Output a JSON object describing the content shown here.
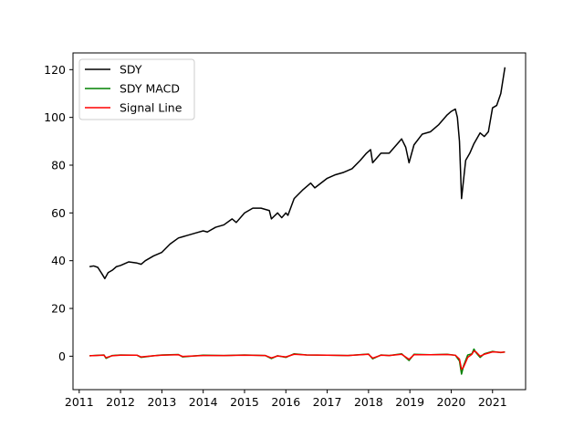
{
  "chart_data": {
    "type": "line",
    "title": "",
    "xlabel": "",
    "ylabel": "",
    "xlim": [
      2010.85,
      2021.8
    ],
    "ylim": [
      -14,
      127
    ],
    "xticks": [
      2011,
      2012,
      2013,
      2014,
      2015,
      2016,
      2017,
      2018,
      2019,
      2020,
      2021
    ],
    "xtick_labels": [
      "2011",
      "2012",
      "2013",
      "2014",
      "2015",
      "2016",
      "2017",
      "2018",
      "2019",
      "2020",
      "2021"
    ],
    "yticks": [
      0,
      20,
      40,
      60,
      80,
      100,
      120
    ],
    "ytick_labels": [
      "0",
      "20",
      "40",
      "60",
      "80",
      "100",
      "120"
    ],
    "grid": false,
    "legend_position": "top-left",
    "series": [
      {
        "name": "SDY",
        "color": "#000000",
        "x": [
          2011.25,
          2011.35,
          2011.45,
          2011.55,
          2011.62,
          2011.7,
          2011.8,
          2011.9,
          2012.0,
          2012.2,
          2012.4,
          2012.5,
          2012.6,
          2012.8,
          2013.0,
          2013.2,
          2013.4,
          2013.5,
          2013.6,
          2013.8,
          2014.0,
          2014.1,
          2014.3,
          2014.5,
          2014.7,
          2014.8,
          2015.0,
          2015.2,
          2015.4,
          2015.6,
          2015.65,
          2015.8,
          2015.9,
          2016.0,
          2016.05,
          2016.2,
          2016.4,
          2016.5,
          2016.6,
          2016.7,
          2016.85,
          2017.0,
          2017.2,
          2017.4,
          2017.6,
          2017.8,
          2017.95,
          2018.05,
          2018.1,
          2018.3,
          2018.5,
          2018.7,
          2018.8,
          2018.9,
          2018.98,
          2019.1,
          2019.3,
          2019.5,
          2019.7,
          2019.9,
          2020.0,
          2020.1,
          2020.15,
          2020.2,
          2020.25,
          2020.35,
          2020.45,
          2020.55,
          2020.7,
          2020.8,
          2020.9,
          2021.0,
          2021.1,
          2021.2,
          2021.3
        ],
        "values": [
          37.5,
          37.8,
          37.2,
          34.5,
          32.5,
          35,
          36,
          37.5,
          38,
          39.5,
          39,
          38.5,
          40,
          42,
          43.5,
          47,
          49.5,
          50,
          50.5,
          51.5,
          52.5,
          52,
          54,
          55,
          57.5,
          56,
          60,
          62,
          62,
          61,
          57.5,
          60,
          58,
          60,
          59,
          66,
          69.5,
          71,
          72.5,
          70.5,
          72.5,
          74.5,
          76,
          77,
          78.5,
          82,
          85,
          86.5,
          81,
          85,
          85,
          89,
          91,
          87.5,
          81,
          88.5,
          93,
          94,
          97,
          101,
          102.5,
          103.5,
          100,
          90,
          66,
          82,
          85,
          89,
          93.5,
          92,
          94,
          104,
          105,
          110,
          121
        ]
      },
      {
        "name": "SDY MACD",
        "color": "#008000",
        "x": [
          2011.25,
          2011.6,
          2011.65,
          2011.8,
          2012.0,
          2012.4,
          2012.5,
          2012.8,
          2013.0,
          2013.4,
          2013.5,
          2014.0,
          2014.5,
          2015.0,
          2015.5,
          2015.65,
          2015.8,
          2016.0,
          2016.2,
          2016.5,
          2017.0,
          2017.5,
          2018.0,
          2018.1,
          2018.3,
          2018.5,
          2018.8,
          2018.98,
          2019.1,
          2019.5,
          2019.9,
          2020.1,
          2020.2,
          2020.25,
          2020.3,
          2020.4,
          2020.5,
          2020.55,
          2020.6,
          2020.7,
          2020.8,
          2021.0,
          2021.2,
          2021.3
        ],
        "values": [
          0.2,
          0.5,
          -0.9,
          0.3,
          0.5,
          0.4,
          -0.5,
          0.2,
          0.5,
          0.7,
          -0.3,
          0.4,
          0.3,
          0.5,
          0.3,
          -1.0,
          0.2,
          -0.5,
          1.0,
          0.5,
          0.4,
          0.3,
          0.9,
          -1.1,
          0.5,
          0.3,
          1.0,
          -1.8,
          0.8,
          0.6,
          0.8,
          0.4,
          -2.0,
          -7.5,
          -4.0,
          0.5,
          1.0,
          3.0,
          1.5,
          -0.5,
          1.0,
          2.0,
          1.5,
          1.8
        ]
      },
      {
        "name": "Signal Line",
        "color": "#ff0000",
        "x": [
          2011.25,
          2011.6,
          2011.65,
          2011.8,
          2012.0,
          2012.4,
          2012.5,
          2012.8,
          2013.0,
          2013.4,
          2013.5,
          2014.0,
          2014.5,
          2015.0,
          2015.5,
          2015.65,
          2015.8,
          2016.0,
          2016.2,
          2016.5,
          2017.0,
          2017.5,
          2018.0,
          2018.1,
          2018.3,
          2018.5,
          2018.8,
          2018.98,
          2019.1,
          2019.5,
          2019.9,
          2020.1,
          2020.2,
          2020.25,
          2020.3,
          2020.4,
          2020.5,
          2020.55,
          2020.6,
          2020.7,
          2020.8,
          2021.0,
          2021.2,
          2021.3
        ],
        "values": [
          0.2,
          0.4,
          -0.6,
          0.2,
          0.4,
          0.4,
          -0.3,
          0.2,
          0.4,
          0.6,
          -0.1,
          0.3,
          0.3,
          0.4,
          0.3,
          -0.7,
          0.1,
          -0.3,
          0.8,
          0.5,
          0.4,
          0.3,
          0.8,
          -0.8,
          0.4,
          0.3,
          0.8,
          -1.3,
          0.6,
          0.6,
          0.7,
          0.4,
          -1.2,
          -5.5,
          -4.5,
          -0.5,
          0.8,
          2.2,
          1.8,
          0.0,
          0.8,
          1.8,
          1.6,
          1.7
        ]
      }
    ],
    "legend": [
      "SDY",
      "SDY MACD",
      "Signal Line"
    ]
  }
}
